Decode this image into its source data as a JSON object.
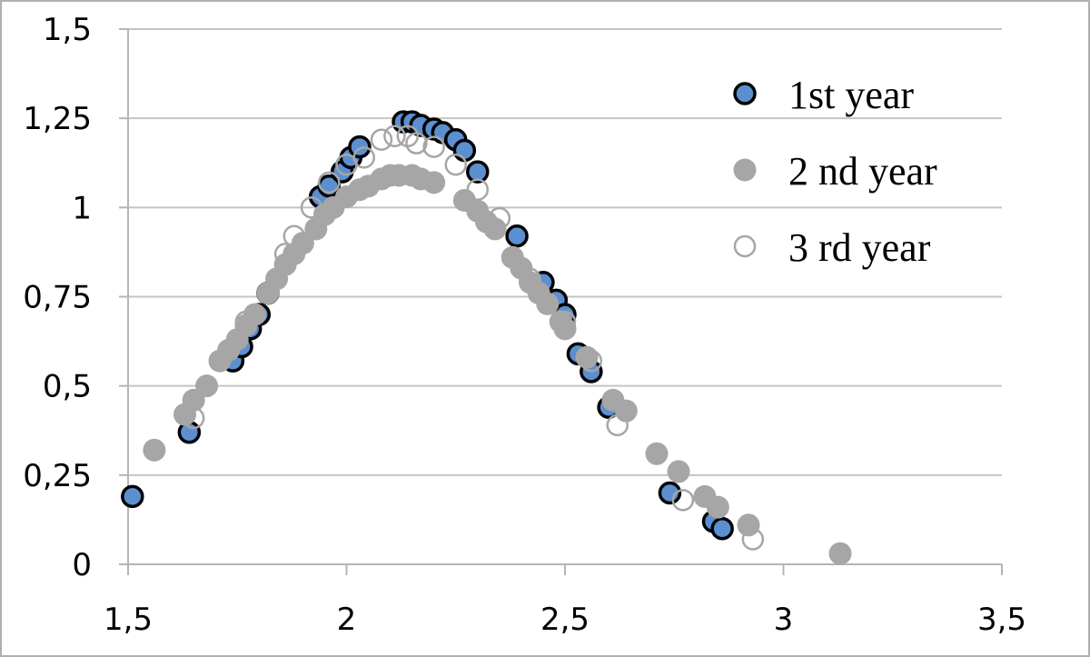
{
  "chart_data": {
    "type": "scatter",
    "title": "",
    "xlabel": "",
    "ylabel": "",
    "xlim": [
      1.5,
      3.5
    ],
    "ylim": [
      0,
      1.5
    ],
    "x_ticks": [
      "1,5",
      "2",
      "2,5",
      "3",
      "3,5"
    ],
    "y_ticks": [
      "0",
      "0,25",
      "0,5",
      "0,75",
      "1",
      "1,25",
      "1,5"
    ],
    "grid": true,
    "legend_position": "top-right",
    "series": [
      {
        "name": "1st year",
        "marker": "filled circle with black outline",
        "color": "#5b8fd0",
        "points": [
          [
            1.51,
            0.19
          ],
          [
            1.64,
            0.37
          ],
          [
            1.74,
            0.57
          ],
          [
            1.76,
            0.61
          ],
          [
            1.78,
            0.66
          ],
          [
            1.8,
            0.7
          ],
          [
            1.82,
            0.76
          ],
          [
            1.94,
            1.03
          ],
          [
            1.96,
            1.06
          ],
          [
            1.99,
            1.1
          ],
          [
            2.01,
            1.14
          ],
          [
            2.03,
            1.17
          ],
          [
            2.13,
            1.24
          ],
          [
            2.15,
            1.24
          ],
          [
            2.17,
            1.23
          ],
          [
            2.2,
            1.22
          ],
          [
            2.22,
            1.21
          ],
          [
            2.25,
            1.19
          ],
          [
            2.27,
            1.16
          ],
          [
            2.3,
            1.1
          ],
          [
            2.39,
            0.92
          ],
          [
            2.45,
            0.79
          ],
          [
            2.48,
            0.74
          ],
          [
            2.5,
            0.7
          ],
          [
            2.53,
            0.59
          ],
          [
            2.56,
            0.54
          ],
          [
            2.6,
            0.44
          ],
          [
            2.74,
            0.2
          ],
          [
            2.84,
            0.12
          ],
          [
            2.86,
            0.1
          ]
        ]
      },
      {
        "name": "2 nd year",
        "marker": "filled gray circle",
        "color": "#a6a6a6",
        "points": [
          [
            1.56,
            0.32
          ],
          [
            1.63,
            0.42
          ],
          [
            1.65,
            0.46
          ],
          [
            1.68,
            0.5
          ],
          [
            1.71,
            0.57
          ],
          [
            1.73,
            0.6
          ],
          [
            1.75,
            0.63
          ],
          [
            1.77,
            0.67
          ],
          [
            1.79,
            0.7
          ],
          [
            1.82,
            0.76
          ],
          [
            1.84,
            0.8
          ],
          [
            1.86,
            0.84
          ],
          [
            1.88,
            0.87
          ],
          [
            1.9,
            0.9
          ],
          [
            1.93,
            0.94
          ],
          [
            1.95,
            0.98
          ],
          [
            1.97,
            1.0
          ],
          [
            2.0,
            1.03
          ],
          [
            2.03,
            1.05
          ],
          [
            2.05,
            1.06
          ],
          [
            2.08,
            1.08
          ],
          [
            2.1,
            1.09
          ],
          [
            2.12,
            1.09
          ],
          [
            2.15,
            1.09
          ],
          [
            2.17,
            1.08
          ],
          [
            2.2,
            1.07
          ],
          [
            2.27,
            1.02
          ],
          [
            2.3,
            0.99
          ],
          [
            2.32,
            0.96
          ],
          [
            2.34,
            0.94
          ],
          [
            2.38,
            0.86
          ],
          [
            2.4,
            0.83
          ],
          [
            2.42,
            0.79
          ],
          [
            2.44,
            0.76
          ],
          [
            2.46,
            0.73
          ],
          [
            2.49,
            0.68
          ],
          [
            2.5,
            0.66
          ],
          [
            2.55,
            0.58
          ],
          [
            2.61,
            0.46
          ],
          [
            2.64,
            0.43
          ],
          [
            2.71,
            0.31
          ],
          [
            2.76,
            0.26
          ],
          [
            2.82,
            0.19
          ],
          [
            2.85,
            0.16
          ],
          [
            2.92,
            0.11
          ],
          [
            3.13,
            0.03
          ]
        ]
      },
      {
        "name": "3 rd year",
        "marker": "hollow circle with gray outline",
        "color": "#a6a6a6",
        "points": [
          [
            1.65,
            0.41
          ],
          [
            1.77,
            0.68
          ],
          [
            1.86,
            0.87
          ],
          [
            1.88,
            0.92
          ],
          [
            1.92,
            1.0
          ],
          [
            1.96,
            1.07
          ],
          [
            2.0,
            1.12
          ],
          [
            2.04,
            1.14
          ],
          [
            2.08,
            1.19
          ],
          [
            2.11,
            1.2
          ],
          [
            2.14,
            1.2
          ],
          [
            2.16,
            1.18
          ],
          [
            2.2,
            1.17
          ],
          [
            2.25,
            1.12
          ],
          [
            2.3,
            1.05
          ],
          [
            2.35,
            0.97
          ],
          [
            2.42,
            0.8
          ],
          [
            2.5,
            0.68
          ],
          [
            2.56,
            0.57
          ],
          [
            2.62,
            0.39
          ],
          [
            2.77,
            0.18
          ],
          [
            2.93,
            0.07
          ]
        ]
      }
    ]
  }
}
